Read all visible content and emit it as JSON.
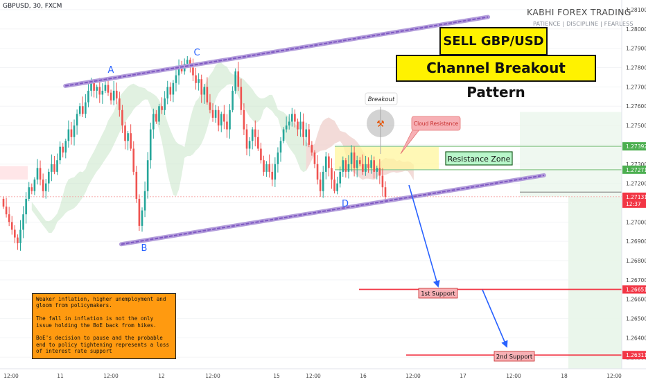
{
  "header": {
    "symbol": "GBPUSD, 30, FXCM",
    "brand": "KABHI FOREX TRADING",
    "tagline": "PATIENCE  |  DISCIPLINE  |  FEARLESS"
  },
  "titles": {
    "line1": "SELL GBP/USD",
    "line2": "Channel Breakout Pattern"
  },
  "annotations": {
    "breakout": "Breakout",
    "cloud_resistance": "Cloud Resistance",
    "resistance_zone": "Resistance Zone",
    "first_support": "1st Support",
    "second_support": "2nd Support",
    "points": [
      "A",
      "B",
      "C",
      "D"
    ]
  },
  "note": {
    "text": "Weaker inflation, higher unemployment and gloom from policymakers.\n\nThe fall in inflation is not the only issue holding the BoE back from hikes.\n\nBoE's decision to pause and the probable end to policy tightening represents a loss of interest rate support"
  },
  "colors": {
    "bull": "#26a69a",
    "bear": "#ef5350",
    "channel": "#7e57c2",
    "support_line": "#f23645",
    "arrow": "#2962ff",
    "resistance_box": "#fff59d",
    "cloud_green": "#c8e6c9",
    "cloud_red": "#ffcdd2"
  },
  "chart_data": {
    "type": "candlestick",
    "symbol": "GBPUSD",
    "timeframe": "30",
    "ylim": [
      1.2624,
      1.2815
    ],
    "yticks": [
      "1.28100",
      "1.28000",
      "1.27900",
      "1.27800",
      "1.27700",
      "1.27600",
      "1.27500",
      "1.27400",
      "1.27300",
      "1.27200",
      "1.27100",
      "1.27000",
      "1.26900",
      "1.26800",
      "1.26700",
      "1.26600",
      "1.26500",
      "1.26400",
      "1.26300"
    ],
    "xticks": [
      "12:00",
      "11",
      "12:00",
      "12",
      "12:00",
      "15",
      "12:00",
      "16",
      "12:00",
      "17",
      "12:00",
      "18",
      "12:00"
    ],
    "price_labels": [
      {
        "text": "1.27392",
        "value": 1.27392,
        "color": "#4caf50"
      },
      {
        "text": "1.27271",
        "value": 1.27271,
        "color": "#4caf50"
      },
      {
        "text": "1.27131",
        "value": 1.27131,
        "color": "#f23645"
      },
      {
        "text": "12:37",
        "value": 1.27095,
        "color": "#f23645"
      },
      {
        "text": "1.26651",
        "value": 1.26651,
        "color": "#f23645"
      },
      {
        "text": "1.26311",
        "value": 1.26311,
        "color": "#f23645"
      }
    ],
    "channel": {
      "upper": [
        {
          "t": 0.105,
          "p": 1.27705
        },
        {
          "t": 0.785,
          "p": 1.28062
        }
      ],
      "lower": [
        {
          "t": 0.195,
          "p": 1.26885
        },
        {
          "t": 0.875,
          "p": 1.27242
        }
      ]
    },
    "resistance_zone": [
      1.27271,
      1.27392
    ],
    "supports": [
      {
        "name": "1st Support",
        "value": 1.26651
      },
      {
        "name": "2nd Support",
        "value": 1.26311
      }
    ],
    "close": [
      1.2708,
      1.2704,
      1.27,
      1.2696,
      1.2692,
      1.2689,
      1.2696,
      1.2704,
      1.2712,
      1.2718,
      1.2716,
      1.2722,
      1.2728,
      1.2722,
      1.2716,
      1.272,
      1.2726,
      1.273,
      1.2726,
      1.2732,
      1.2739,
      1.2736,
      1.2742,
      1.2748,
      1.2744,
      1.275,
      1.2756,
      1.276,
      1.2756,
      1.2762,
      1.2768,
      1.2772,
      1.2768,
      1.277,
      1.2766,
      1.2768,
      1.2771,
      1.2767,
      1.2763,
      1.2768,
      1.2764,
      1.2758,
      1.275,
      1.2742,
      1.2746,
      1.2738,
      1.2726,
      1.2712,
      1.2698,
      1.2706,
      1.2716,
      1.2732,
      1.2748,
      1.2756,
      1.2752,
      1.276,
      1.2758,
      1.2764,
      1.277,
      1.2766,
      1.2772,
      1.2776,
      1.278,
      1.2778,
      1.2782,
      1.2784,
      1.278,
      1.2776,
      1.2772,
      1.2774,
      1.2766,
      1.277,
      1.2762,
      1.2758,
      1.2754,
      1.2758,
      1.275,
      1.2756,
      1.2752,
      1.2748,
      1.2758,
      1.2768,
      1.2778,
      1.277,
      1.2758,
      1.2748,
      1.2738,
      1.2742,
      1.2748,
      1.2744,
      1.2738,
      1.2732,
      1.2726,
      1.273,
      1.2726,
      1.2722,
      1.273,
      1.2736,
      1.2742,
      1.2748,
      1.275,
      1.2752,
      1.2756,
      1.2752,
      1.2748,
      1.2752,
      1.2744,
      1.2748,
      1.274,
      1.2736,
      1.273,
      1.2722,
      1.2716,
      1.2726,
      1.2734,
      1.2728,
      1.2722,
      1.2716,
      1.272,
      1.2726,
      1.2732,
      1.2726,
      1.273,
      1.2736,
      1.2728,
      1.2732,
      1.273,
      1.2726,
      1.273,
      1.2728,
      1.2732,
      1.2726,
      1.2728,
      1.2724,
      1.2718,
      1.2713
    ]
  }
}
